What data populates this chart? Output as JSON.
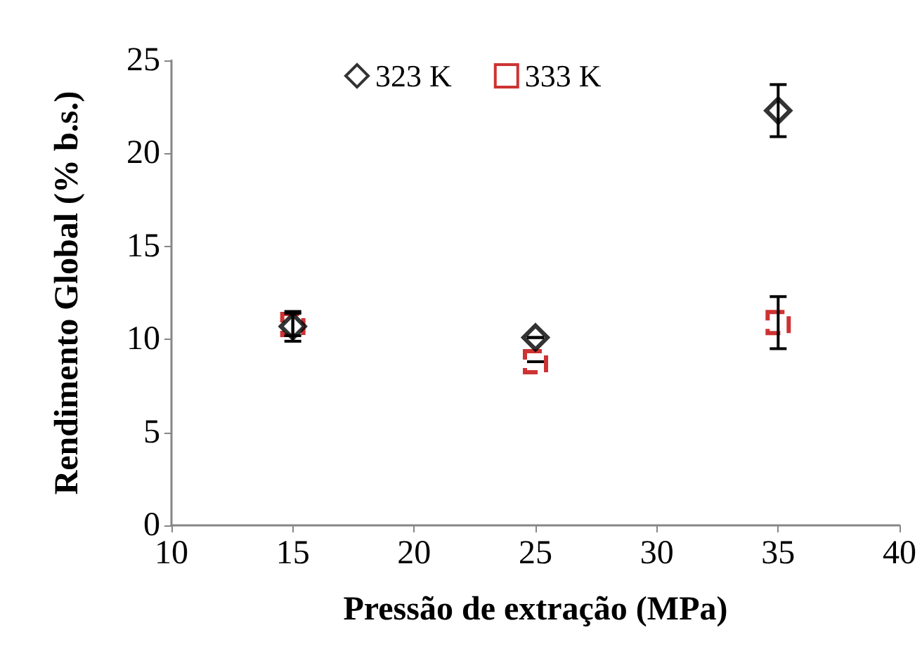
{
  "chart_data": {
    "type": "scatter",
    "xlabel": "Pressão de extração (MPa)",
    "ylabel": "Rendimento Global (% b.s.)",
    "x": [
      15,
      25,
      35
    ],
    "series": [
      {
        "name": "323 K",
        "color": "#000000",
        "marker": "diamond",
        "values": [
          10.7,
          10.1,
          22.3
        ],
        "errors": [
          0.8,
          null,
          1.4
        ]
      },
      {
        "name": "333 K",
        "color": "#c00000",
        "marker": "square",
        "line_style": "dashed",
        "values": [
          10.8,
          8.8,
          10.9
        ],
        "errors": [
          0.6,
          null,
          1.4
        ]
      }
    ],
    "xlim": [
      10,
      40
    ],
    "xticks": [
      10,
      15,
      20,
      25,
      30,
      35,
      40
    ],
    "ylim": [
      0,
      25
    ],
    "yticks": [
      0,
      5,
      10,
      15,
      20,
      25
    ],
    "grid": false,
    "legend": "top"
  }
}
